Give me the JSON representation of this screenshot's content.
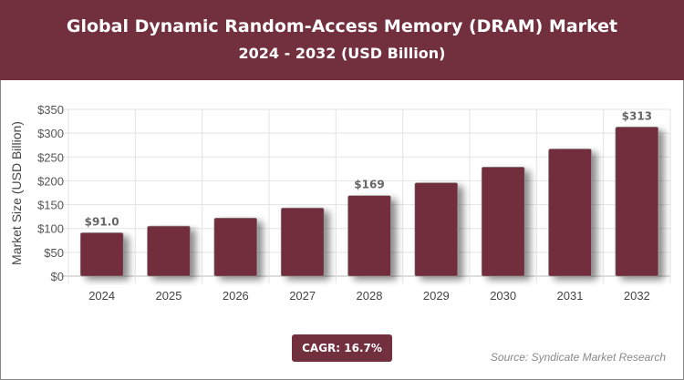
{
  "header": {
    "title": "Global Dynamic Random-Access Memory (DRAM) Market",
    "subtitle": "2024 - 2032 (USD Billion)"
  },
  "cagr": "CAGR: 16.7%",
  "source": "Source: Syndicate Market Research",
  "colors": {
    "brand": "#722F3D",
    "bar": "#722F3D"
  },
  "chart_data": {
    "type": "bar",
    "categories": [
      "2024",
      "2025",
      "2026",
      "2027",
      "2028",
      "2029",
      "2030",
      "2031",
      "2032"
    ],
    "values": [
      91.0,
      105,
      122,
      143,
      169,
      196,
      229,
      267,
      313
    ],
    "data_labels": {
      "0": "$91.0",
      "4": "$169",
      "8": "$313"
    },
    "ylabel": "Market Size (USD Billion)",
    "xlabel": "",
    "ylim": [
      0,
      350
    ],
    "yticks": [
      "$0",
      "$50",
      "$100",
      "$150",
      "$200",
      "$250",
      "$300",
      "$350"
    ],
    "grid": true
  }
}
